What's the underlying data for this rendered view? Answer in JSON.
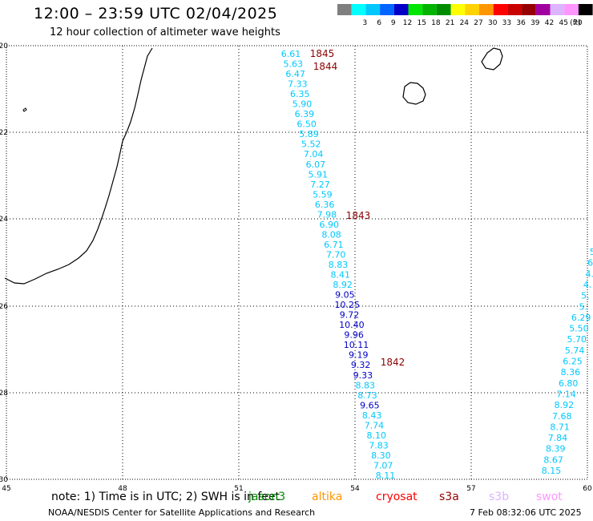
{
  "title": "12:00 – 23:59 UTC 02/04/2025",
  "subtitle": "12 hour collection of altimeter wave heights",
  "legend": {
    "unit_label": "(ft)",
    "bins": [
      {
        "label": "",
        "color": "#7f7f7f"
      },
      {
        "label": "3",
        "color": "#00ffff"
      },
      {
        "label": "6",
        "color": "#00c8ff"
      },
      {
        "label": "9",
        "color": "#0064ff"
      },
      {
        "label": "12",
        "color": "#0000c8"
      },
      {
        "label": "15",
        "color": "#00e600"
      },
      {
        "label": "18",
        "color": "#00b400"
      },
      {
        "label": "21",
        "color": "#008c00"
      },
      {
        "label": "24",
        "color": "#ffff00"
      },
      {
        "label": "27",
        "color": "#ffd200"
      },
      {
        "label": "30",
        "color": "#ff9600"
      },
      {
        "label": "33",
        "color": "#ff0000"
      },
      {
        "label": "36",
        "color": "#c80000"
      },
      {
        "label": "39",
        "color": "#960000"
      },
      {
        "label": "42",
        "color": "#a000a0"
      },
      {
        "label": "45",
        "color": "#dcb4ff"
      },
      {
        "label": "70",
        "color": "#ff96ff"
      },
      {
        "label": "",
        "color": "#000000"
      }
    ]
  },
  "map": {
    "lat_ticks": [
      "-20",
      "-22",
      "-24",
      "-26",
      "-28",
      "-30"
    ],
    "lon_ticks": [
      "45",
      "48",
      "51",
      "54",
      "57",
      "60"
    ],
    "time_labels": [
      {
        "text": "1845",
        "color": "#8b0000"
      },
      {
        "text": "1844",
        "color": "#8b0000"
      },
      {
        "text": "1843",
        "color": "#8b0000"
      },
      {
        "text": "1842",
        "color": "#8b0000"
      }
    ],
    "track1": [
      {
        "v": "6.61",
        "c": "#00c8ff"
      },
      {
        "v": "5.63",
        "c": "#00c8ff"
      },
      {
        "v": "6.47",
        "c": "#00c8ff"
      },
      {
        "v": "7.33",
        "c": "#00c8ff"
      },
      {
        "v": "6.35",
        "c": "#00c8ff"
      },
      {
        "v": "5.90",
        "c": "#00c8ff"
      },
      {
        "v": "6.39",
        "c": "#00c8ff"
      },
      {
        "v": "6.50",
        "c": "#00c8ff"
      },
      {
        "v": "5.89",
        "c": "#00c8ff"
      },
      {
        "v": "5.52",
        "c": "#00c8ff"
      },
      {
        "v": "7.04",
        "c": "#00c8ff"
      },
      {
        "v": "6.07",
        "c": "#00c8ff"
      },
      {
        "v": "5.91",
        "c": "#00c8ff"
      },
      {
        "v": "7.27",
        "c": "#00c8ff"
      },
      {
        "v": "5.59",
        "c": "#00c8ff"
      },
      {
        "v": "6.36",
        "c": "#00c8ff"
      },
      {
        "v": "7.98",
        "c": "#00c8ff"
      },
      {
        "v": "6.90",
        "c": "#00c8ff"
      },
      {
        "v": "8.08",
        "c": "#00c8ff"
      },
      {
        "v": "6.71",
        "c": "#00c8ff"
      },
      {
        "v": "7.70",
        "c": "#00c8ff"
      },
      {
        "v": "8.83",
        "c": "#00c8ff"
      },
      {
        "v": "8.41",
        "c": "#00c8ff"
      },
      {
        "v": "8.92",
        "c": "#00c8ff"
      },
      {
        "v": "9.05",
        "c": "#0000c8"
      },
      {
        "v": "10.25",
        "c": "#0000c8"
      },
      {
        "v": "9.72",
        "c": "#0000c8"
      },
      {
        "v": "10.40",
        "c": "#0000c8"
      },
      {
        "v": "9.96",
        "c": "#0000c8"
      },
      {
        "v": "10.11",
        "c": "#0000c8"
      },
      {
        "v": "9.19",
        "c": "#0000c8"
      },
      {
        "v": "9.32",
        "c": "#0000c8"
      },
      {
        "v": "9.33",
        "c": "#0000c8"
      },
      {
        "v": "8.83",
        "c": "#00c8ff"
      },
      {
        "v": "8.73",
        "c": "#00c8ff"
      },
      {
        "v": "9.65",
        "c": "#0000c8"
      },
      {
        "v": "8.43",
        "c": "#00c8ff"
      },
      {
        "v": "7.74",
        "c": "#00c8ff"
      },
      {
        "v": "8.10",
        "c": "#00c8ff"
      },
      {
        "v": "7.83",
        "c": "#00c8ff"
      },
      {
        "v": "8.30",
        "c": "#00c8ff"
      },
      {
        "v": "7.07",
        "c": "#00c8ff"
      },
      {
        "v": "8.11",
        "c": "#00c8ff"
      }
    ],
    "track2": [
      {
        "v": "5.",
        "c": "#00c8ff"
      },
      {
        "v": "6.",
        "c": "#00c8ff"
      },
      {
        "v": "4.",
        "c": "#00c8ff"
      },
      {
        "v": "4.",
        "c": "#00c8ff"
      },
      {
        "v": "5.",
        "c": "#00c8ff"
      },
      {
        "v": "5.",
        "c": "#00c8ff"
      },
      {
        "v": "6.29",
        "c": "#00c8ff"
      },
      {
        "v": "5.50",
        "c": "#00c8ff"
      },
      {
        "v": "5.70",
        "c": "#00c8ff"
      },
      {
        "v": "5.74",
        "c": "#00c8ff"
      },
      {
        "v": "6.25",
        "c": "#00c8ff"
      },
      {
        "v": "8.36",
        "c": "#00c8ff"
      },
      {
        "v": "6.80",
        "c": "#00c8ff"
      },
      {
        "v": "7.14",
        "c": "#00c8ff"
      },
      {
        "v": "8.92",
        "c": "#00c8ff"
      },
      {
        "v": "7.68",
        "c": "#00c8ff"
      },
      {
        "v": "8.71",
        "c": "#00c8ff"
      },
      {
        "v": "7.84",
        "c": "#00c8ff"
      },
      {
        "v": "8.39",
        "c": "#00c8ff"
      },
      {
        "v": "8.67",
        "c": "#00c8ff"
      },
      {
        "v": "8.15",
        "c": "#00c8ff"
      }
    ]
  },
  "footer": {
    "note": "note:  1) Time is in UTC;  2) SWH is in feet",
    "satellites": [
      {
        "name": "jason3",
        "color": "#008c00"
      },
      {
        "name": "altika",
        "color": "#ff9600"
      },
      {
        "name": "cryosat",
        "color": "#ff0000"
      },
      {
        "name": "s3a",
        "color": "#960000"
      },
      {
        "name": "s3b",
        "color": "#dcb4ff"
      },
      {
        "name": "swot",
        "color": "#ff96ff"
      }
    ],
    "source": "NOAA/NESDIS Center for Satellite Applications and Research",
    "timestamp": "7 Feb 08:32:06 UTC 2025"
  }
}
